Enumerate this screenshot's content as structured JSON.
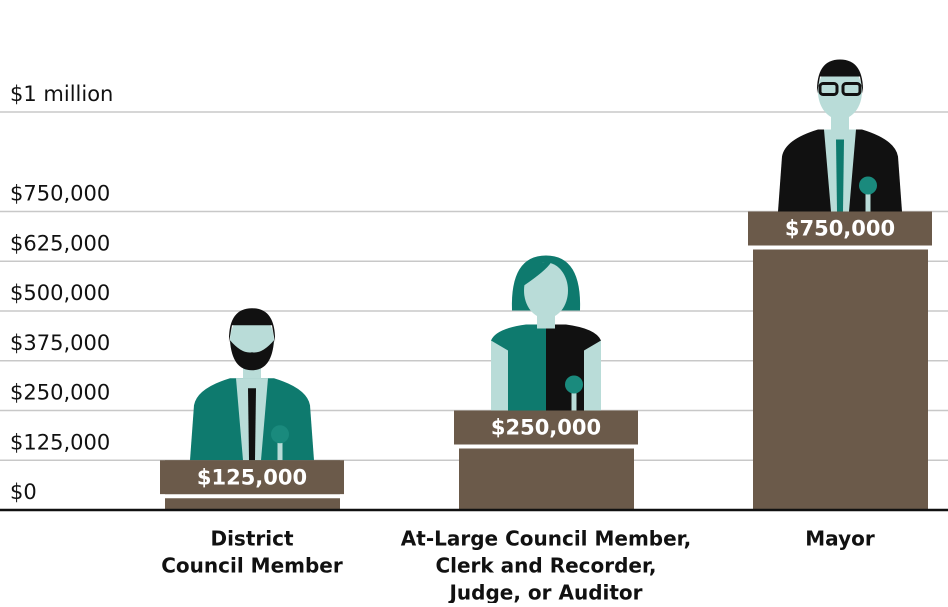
{
  "chart_data": {
    "type": "bar",
    "categories": [
      [
        "District",
        "Council Member"
      ],
      [
        "At-Large Council Member,",
        "Clerk and Recorder,",
        "Judge, or Auditor"
      ],
      [
        "Mayor"
      ]
    ],
    "values": [
      125000,
      250000,
      750000
    ],
    "value_labels": [
      "$125,000",
      "$250,000",
      "$750,000"
    ],
    "color": "#6b5a4a",
    "ylim": [
      0,
      1000000
    ],
    "yticks": [
      {
        "value": 0,
        "label": "$0"
      },
      {
        "value": 125000,
        "label": "$125,000"
      },
      {
        "value": 250000,
        "label": "$250,000"
      },
      {
        "value": 375000,
        "label": "$375,000"
      },
      {
        "value": 500000,
        "label": "$500,000"
      },
      {
        "value": 625000,
        "label": "$625,000"
      },
      {
        "value": 750000,
        "label": "$750,000"
      },
      {
        "value": 1000000,
        "label": "$1 million"
      }
    ],
    "grid": true
  }
}
